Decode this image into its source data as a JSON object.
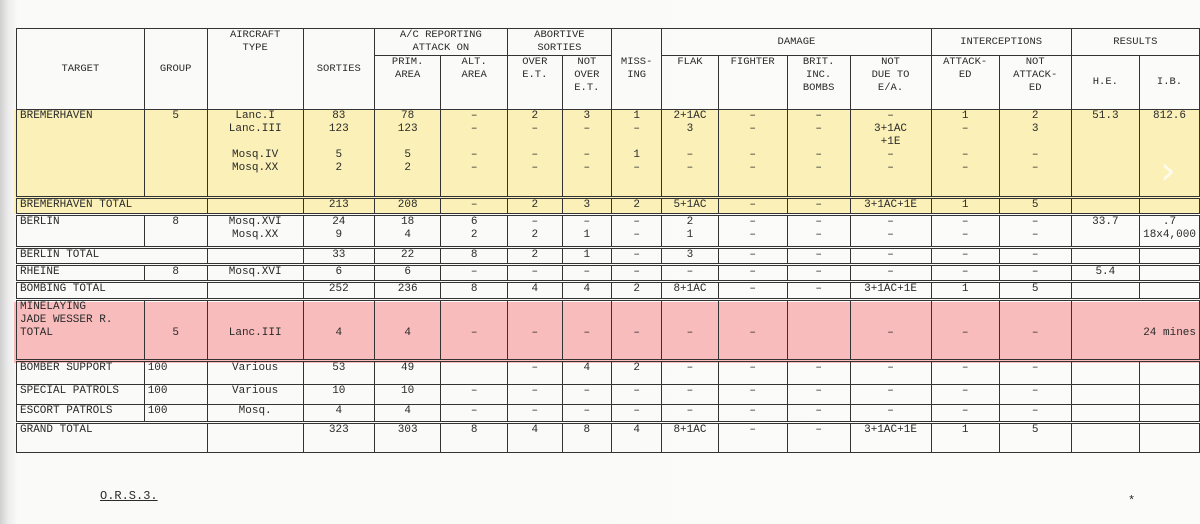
{
  "header": {
    "target": "TARGET",
    "group": "GROUP",
    "aircraft_type": "AIRCRAFT\nTYPE",
    "sorties": "SORTIES",
    "ac_reporting": "A/C REPORTING\nATTACK ON",
    "prim_area": "PRIM.\nAREA",
    "alt_area": "ALT.\nAREA",
    "abortive": "ABORTIVE\nSORTIES",
    "over_et": "OVER\nE.T.",
    "not_over_et": "NOT\nOVER\nE.T.",
    "missing": "MISS-\nING",
    "damage": "DAMAGE",
    "flak": "FLAK",
    "fighter": "FIGHTER",
    "brit_inc": "BRIT.\nINC.\nBOMBS",
    "not_due": "NOT\nDUE TO\nE/A.",
    "interceptions": "INTERCEPTIONS",
    "attacked": "ATTACK-\nED",
    "not_attacked": "NOT\nATTACK-\nED",
    "results": "RESULTS",
    "he": "H.E.",
    "ib": "I.B."
  },
  "rows": [
    {
      "name": "bremerhaven",
      "cells": [
        "BREMERHAVEN",
        "5",
        "Lanc.I\nLanc.III\n\nMosq.IV\nMosq.XX",
        "83\n123\n\n5\n2",
        "78\n123\n\n5\n2",
        "–\n–\n\n–\n–",
        "2\n–\n\n–\n–",
        "3\n–\n\n–\n–",
        "1\n–\n\n1\n–",
        "2+1AC\n3\n\n–\n–",
        "–\n–\n\n–\n–",
        "–\n–\n\n–\n–",
        "–\n3+1AC\n+1E\n–\n–",
        "1\n–\n\n–\n–",
        "2\n3\n\n–\n–",
        "51.3",
        "812.6"
      ]
    },
    {
      "name": "bremerhaven-total",
      "total": true,
      "cells": [
        "BREMERHAVEN   TOTAL",
        "",
        "213",
        "208",
        "–",
        "2",
        "3",
        "2",
        "5+1AC",
        "–",
        "–",
        "3+1AC+1E",
        "1",
        "5",
        "",
        ""
      ]
    },
    {
      "name": "berlin",
      "cells": [
        "BERLIN",
        "8",
        "Mosq.XVI\nMosq.XX",
        "24\n9",
        "18\n4",
        "6\n2",
        "–\n2",
        "–\n1",
        "–\n–",
        "2\n1",
        "–\n–",
        "–\n–",
        "–\n–",
        "–\n–",
        "–\n–",
        "33.7",
        "   .7\n18x4,000"
      ]
    },
    {
      "name": "berlin-total",
      "total": true,
      "cells": [
        "BERLIN   TOTAL",
        "",
        "33",
        "22",
        "8",
        "2",
        "1",
        "–",
        "3",
        "–",
        "–",
        "–",
        "–",
        "–",
        "",
        ""
      ]
    },
    {
      "name": "rheine",
      "cells": [
        "RHEINE",
        "8",
        "Mosq.XVI",
        "6",
        "6",
        "–",
        "–",
        "–",
        "–",
        "–",
        "–",
        "–",
        "–",
        "–",
        "–",
        "5.4",
        ""
      ]
    },
    {
      "name": "bombing-total",
      "total": true,
      "cells": [
        "BOMBING   TOTAL",
        "",
        "252",
        "236",
        "8",
        "4",
        "4",
        "2",
        "8+1AC",
        "–",
        "–",
        "3+1AC+1E",
        "1",
        "5",
        "",
        ""
      ]
    },
    {
      "name": "minelaying",
      "cells": [
        "MINELAYING\nJADE WESSER R.\n    TOTAL",
        "\n\n5",
        "\n\nLanc.III",
        "\n\n4",
        "\n\n4",
        "\n\n–",
        "\n\n–",
        "\n\n–",
        "\n\n–",
        "\n\n–",
        "\n\n–",
        "",
        "\n\n–",
        "\n\n–",
        "\n\n–",
        "\n\n24 mines"
      ],
      "results_span": true
    },
    {
      "name": "bomber-support",
      "cells": [
        "BOMBER SUPPORT",
        "100",
        "Various",
        "53",
        "49",
        "",
        "–",
        "4",
        "2",
        "–",
        "–",
        "–",
        "–",
        "–",
        "–",
        "",
        ""
      ]
    },
    {
      "name": "special-patrols",
      "cells": [
        "SPECIAL PATROLS",
        "100",
        "Various",
        "10",
        "10",
        "–",
        "–",
        "–",
        "–",
        "–",
        "–",
        "–",
        "–",
        "–",
        "–",
        "",
        ""
      ]
    },
    {
      "name": "escort-patrols",
      "cells": [
        "ESCORT PATROLS",
        "100",
        "Mosq.",
        "4",
        "4",
        "–",
        "–",
        "–",
        "–",
        "–",
        "–",
        "–",
        "–",
        "–",
        "–",
        "",
        ""
      ]
    },
    {
      "name": "grand-total",
      "total": true,
      "cells": [
        "GRAND TOTAL",
        "",
        "323",
        "303",
        "8",
        "4",
        "8",
        "4",
        "8+1AC",
        "–",
        "–",
        "3+1AC+1E",
        "1",
        "5",
        "",
        ""
      ]
    }
  ],
  "footer": "O.R.S.3.",
  "colors": {
    "highlight_yellow": "#faf0b8",
    "highlight_pink": "#f8bcbc"
  }
}
